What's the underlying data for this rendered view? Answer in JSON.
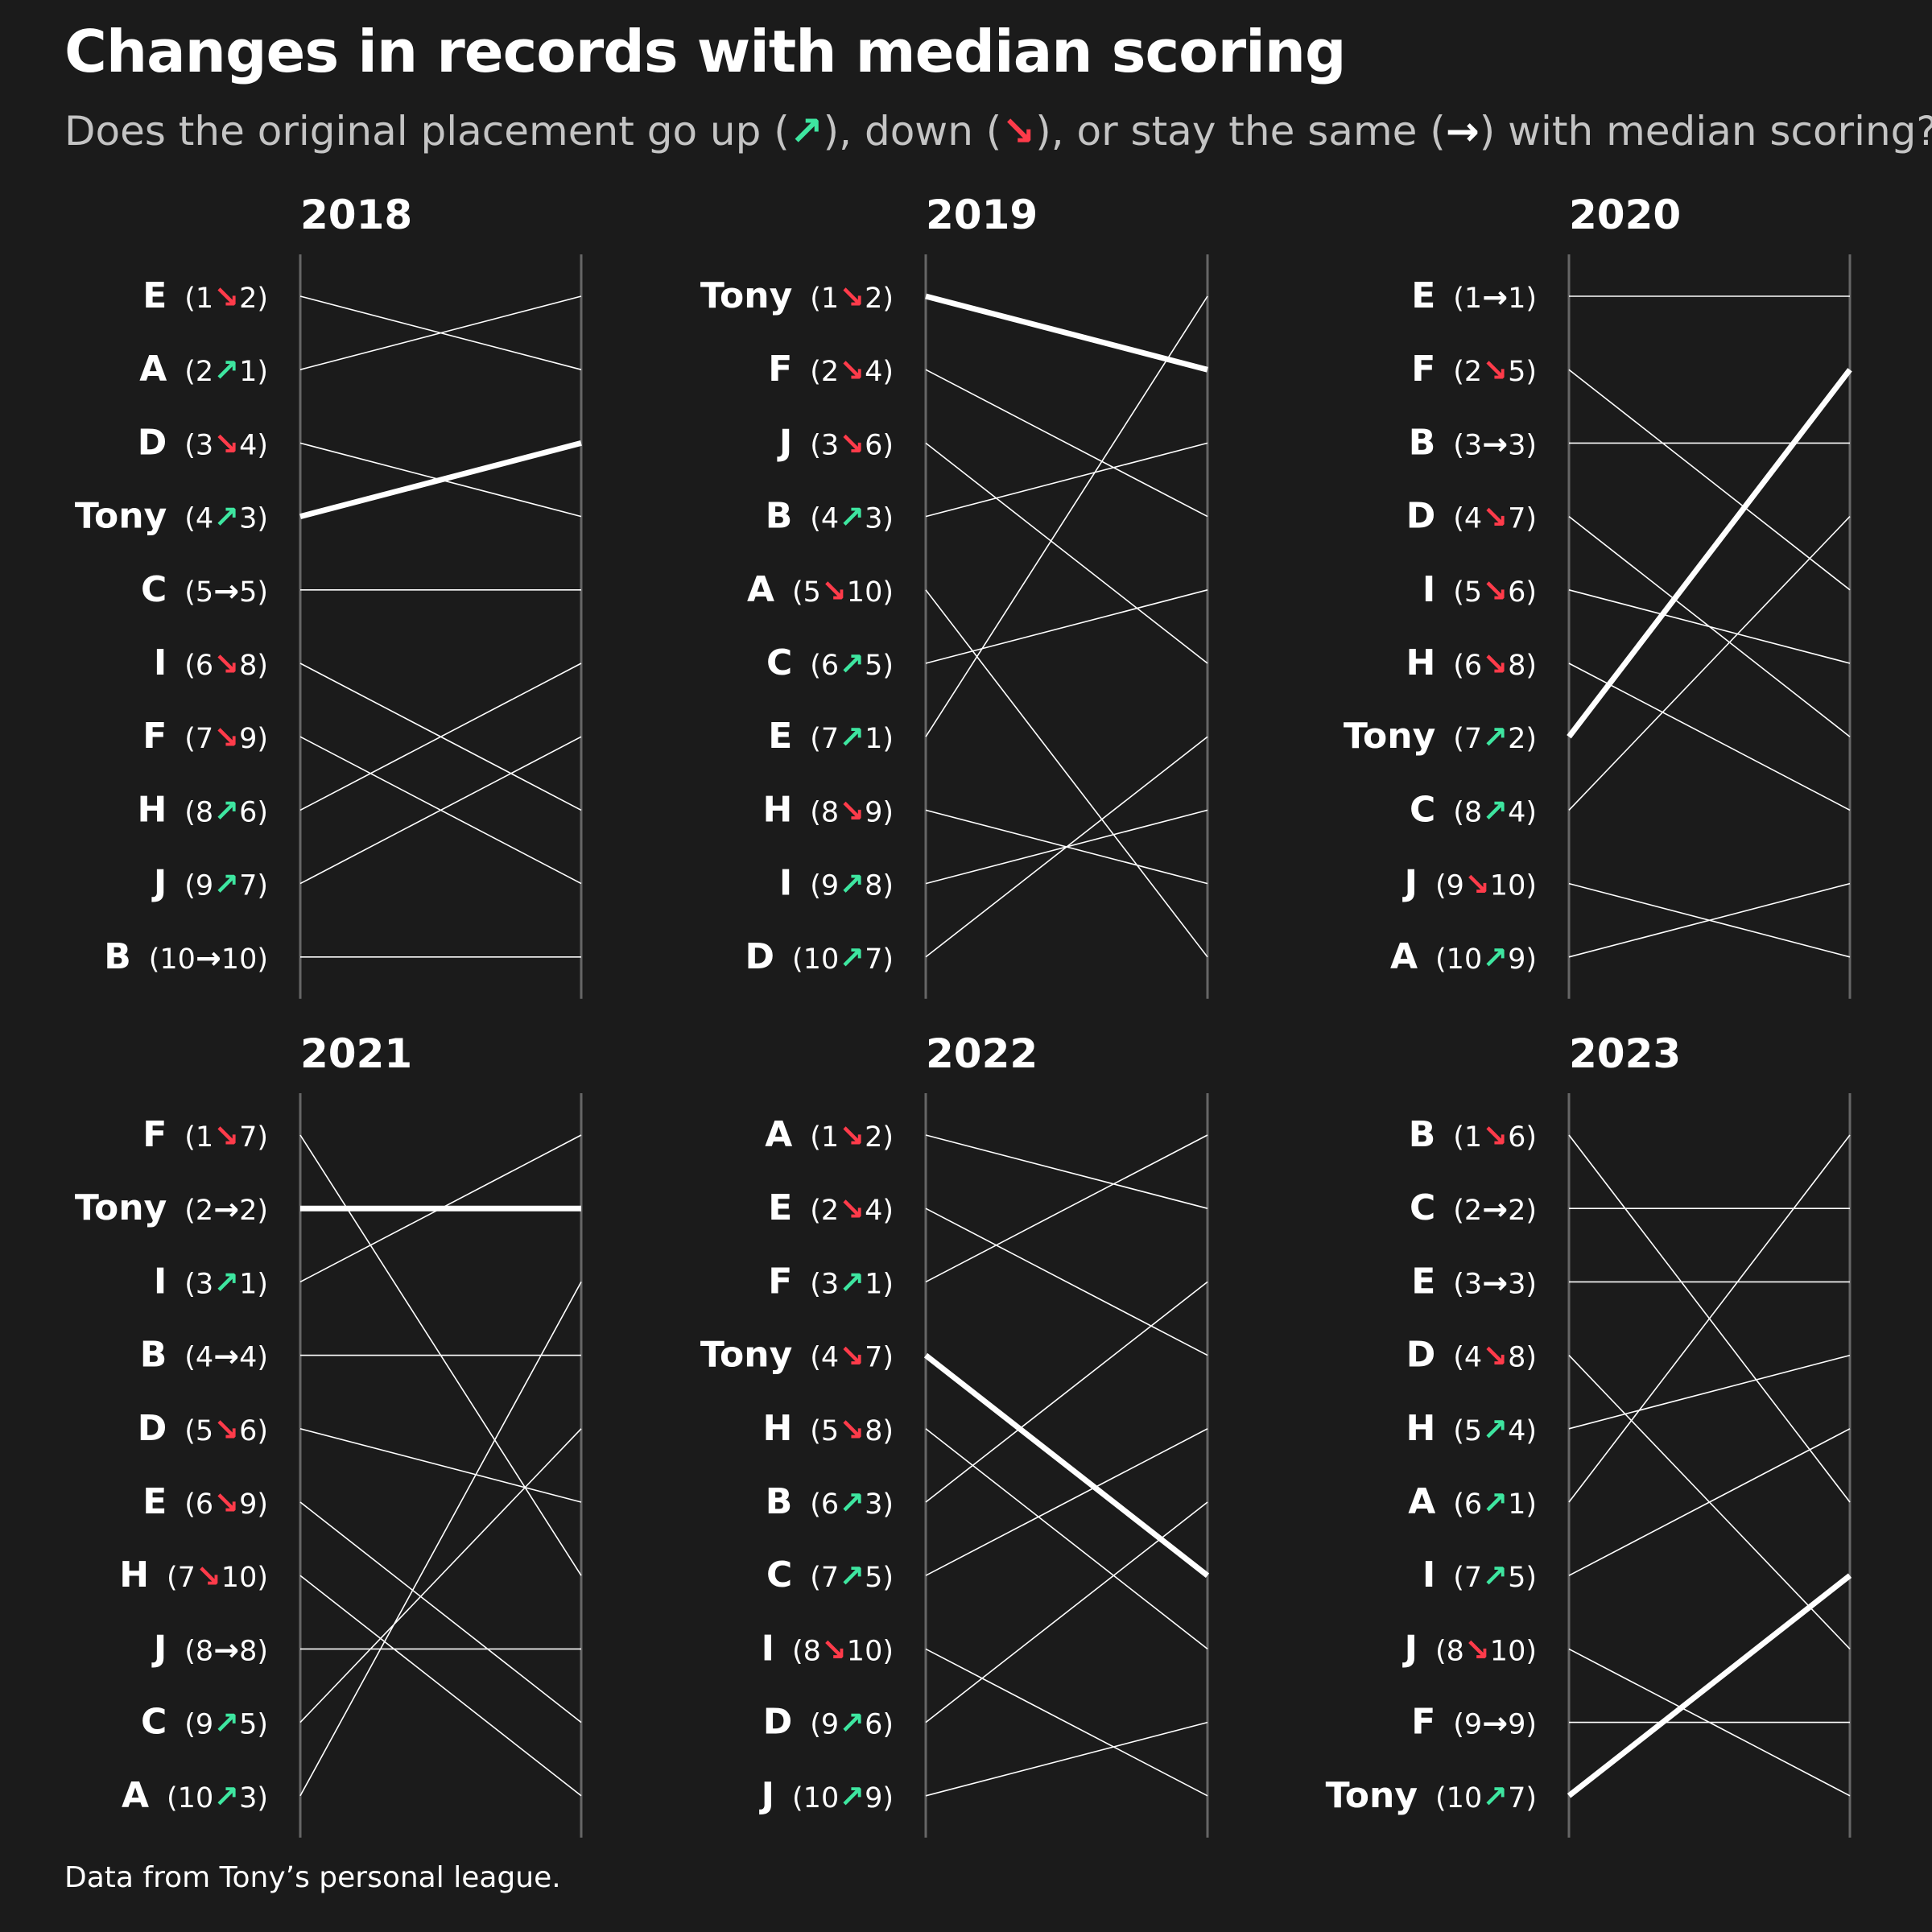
{
  "title": "Changes in records with median scoring",
  "subtitle": {
    "part1": "Does the original placement go up (",
    "up_icon": "↗",
    "part2": "), down (",
    "down_icon": "↘",
    "part3": "), or stay the same (",
    "same_icon": "→",
    "part4": ") with median scoring?"
  },
  "caption": "Data from Tony’s personal league.",
  "colors": {
    "background": "#1b1b1b",
    "up": "#3ee6a0",
    "down": "#ff3b4a",
    "same": "#ffffff",
    "line": "#ffffff",
    "axis": "#666666",
    "subtitle": "#c4c4c4"
  },
  "chart_data": [
    {
      "type": "slope",
      "title": "2018",
      "highlight": "Tony",
      "rows": [
        {
          "team": "E",
          "original": 1,
          "median": 2
        },
        {
          "team": "A",
          "original": 2,
          "median": 1
        },
        {
          "team": "D",
          "original": 3,
          "median": 4
        },
        {
          "team": "Tony",
          "original": 4,
          "median": 3
        },
        {
          "team": "C",
          "original": 5,
          "median": 5
        },
        {
          "team": "I",
          "original": 6,
          "median": 8
        },
        {
          "team": "F",
          "original": 7,
          "median": 9
        },
        {
          "team": "H",
          "original": 8,
          "median": 6
        },
        {
          "team": "J",
          "original": 9,
          "median": 7
        },
        {
          "team": "B",
          "original": 10,
          "median": 10
        }
      ]
    },
    {
      "type": "slope",
      "title": "2019",
      "highlight": "Tony",
      "rows": [
        {
          "team": "Tony",
          "original": 1,
          "median": 2
        },
        {
          "team": "F",
          "original": 2,
          "median": 4
        },
        {
          "team": "J",
          "original": 3,
          "median": 6
        },
        {
          "team": "B",
          "original": 4,
          "median": 3
        },
        {
          "team": "A",
          "original": 5,
          "median": 10
        },
        {
          "team": "C",
          "original": 6,
          "median": 5
        },
        {
          "team": "E",
          "original": 7,
          "median": 1
        },
        {
          "team": "H",
          "original": 8,
          "median": 9
        },
        {
          "team": "I",
          "original": 9,
          "median": 8
        },
        {
          "team": "D",
          "original": 10,
          "median": 7
        }
      ]
    },
    {
      "type": "slope",
      "title": "2020",
      "highlight": "Tony",
      "rows": [
        {
          "team": "E",
          "original": 1,
          "median": 1
        },
        {
          "team": "F",
          "original": 2,
          "median": 5
        },
        {
          "team": "B",
          "original": 3,
          "median": 3
        },
        {
          "team": "D",
          "original": 4,
          "median": 7
        },
        {
          "team": "I",
          "original": 5,
          "median": 6
        },
        {
          "team": "H",
          "original": 6,
          "median": 8
        },
        {
          "team": "Tony",
          "original": 7,
          "median": 2
        },
        {
          "team": "C",
          "original": 8,
          "median": 4
        },
        {
          "team": "J",
          "original": 9,
          "median": 10
        },
        {
          "team": "A",
          "original": 10,
          "median": 9
        }
      ]
    },
    {
      "type": "slope",
      "title": "2021",
      "highlight": "Tony",
      "rows": [
        {
          "team": "F",
          "original": 1,
          "median": 7
        },
        {
          "team": "Tony",
          "original": 2,
          "median": 2
        },
        {
          "team": "I",
          "original": 3,
          "median": 1
        },
        {
          "team": "B",
          "original": 4,
          "median": 4
        },
        {
          "team": "D",
          "original": 5,
          "median": 6
        },
        {
          "team": "E",
          "original": 6,
          "median": 9
        },
        {
          "team": "H",
          "original": 7,
          "median": 10
        },
        {
          "team": "J",
          "original": 8,
          "median": 8
        },
        {
          "team": "C",
          "original": 9,
          "median": 5
        },
        {
          "team": "A",
          "original": 10,
          "median": 3
        }
      ]
    },
    {
      "type": "slope",
      "title": "2022",
      "highlight": "Tony",
      "rows": [
        {
          "team": "A",
          "original": 1,
          "median": 2
        },
        {
          "team": "E",
          "original": 2,
          "median": 4
        },
        {
          "team": "F",
          "original": 3,
          "median": 1
        },
        {
          "team": "Tony",
          "original": 4,
          "median": 7
        },
        {
          "team": "H",
          "original": 5,
          "median": 8
        },
        {
          "team": "B",
          "original": 6,
          "median": 3
        },
        {
          "team": "C",
          "original": 7,
          "median": 5
        },
        {
          "team": "I",
          "original": 8,
          "median": 10
        },
        {
          "team": "D",
          "original": 9,
          "median": 6
        },
        {
          "team": "J",
          "original": 10,
          "median": 9
        }
      ]
    },
    {
      "type": "slope",
      "title": "2023",
      "highlight": "Tony",
      "rows": [
        {
          "team": "B",
          "original": 1,
          "median": 6
        },
        {
          "team": "C",
          "original": 2,
          "median": 2
        },
        {
          "team": "E",
          "original": 3,
          "median": 3
        },
        {
          "team": "D",
          "original": 4,
          "median": 8
        },
        {
          "team": "H",
          "original": 5,
          "median": 4
        },
        {
          "team": "A",
          "original": 6,
          "median": 1
        },
        {
          "team": "I",
          "original": 7,
          "median": 5
        },
        {
          "team": "J",
          "original": 8,
          "median": 10
        },
        {
          "team": "F",
          "original": 9,
          "median": 9
        },
        {
          "team": "Tony",
          "original": 10,
          "median": 7
        }
      ]
    }
  ]
}
